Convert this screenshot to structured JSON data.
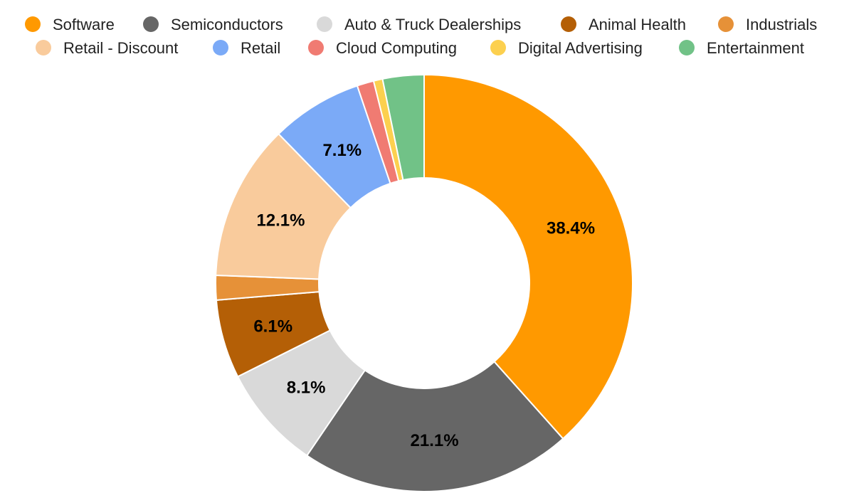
{
  "chart_data": {
    "type": "pie",
    "donut": true,
    "legend_position": "top",
    "slices": [
      {
        "name": "Software",
        "value": 38.4,
        "color": "#FF9900",
        "label": "38.4%"
      },
      {
        "name": "Semiconductors",
        "value": 21.1,
        "color": "#666666",
        "label": "21.1%"
      },
      {
        "name": "Auto & Truck Dealerships",
        "value": 8.1,
        "color": "#D9D9D9",
        "label": "8.1%"
      },
      {
        "name": "Animal Health",
        "value": 6.1,
        "color": "#B45F06",
        "label": "6.1%"
      },
      {
        "name": "Industrials",
        "value": 1.9,
        "color": "#E69138",
        "label": ""
      },
      {
        "name": "Retail - Discount",
        "value": 12.1,
        "color": "#F9CB9C",
        "label": "12.1%"
      },
      {
        "name": "Retail",
        "value": 7.1,
        "color": "#7BAAF7",
        "label": "7.1%"
      },
      {
        "name": "Cloud Computing",
        "value": 1.3,
        "color": "#F07B72",
        "label": ""
      },
      {
        "name": "Digital Advertising",
        "value": 0.7,
        "color": "#FCD04F",
        "label": ""
      },
      {
        "name": "Entertainment",
        "value": 3.2,
        "color": "#71C287",
        "label": ""
      }
    ]
  }
}
